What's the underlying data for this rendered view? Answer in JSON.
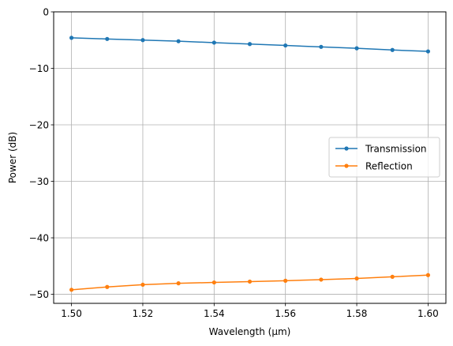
{
  "chart_data": {
    "type": "line",
    "xlabel": "Wavelength (µm)",
    "ylabel": "Power (dB)",
    "xlim": [
      1.495,
      1.605
    ],
    "ylim": [
      -51.6,
      0
    ],
    "xticks": [
      1.5,
      1.52,
      1.54,
      1.56,
      1.58,
      1.6
    ],
    "xtick_labels": [
      "1.50",
      "1.52",
      "1.54",
      "1.56",
      "1.58",
      "1.60"
    ],
    "yticks": [
      0,
      -10,
      -20,
      -30,
      -40,
      -50
    ],
    "ytick_labels": [
      "0",
      "−10",
      "−20",
      "−30",
      "−40",
      "−50"
    ],
    "grid": true,
    "legend_position": "center-right",
    "x": [
      1.5,
      1.51,
      1.52,
      1.53,
      1.54,
      1.55,
      1.56,
      1.57,
      1.58,
      1.59,
      1.6
    ],
    "series": [
      {
        "name": "Transmission",
        "color": "#1f77b4",
        "marker": "circle",
        "values": [
          -4.6,
          -4.8,
          -5.0,
          -5.2,
          -5.45,
          -5.7,
          -5.95,
          -6.2,
          -6.45,
          -6.75,
          -7.0
        ]
      },
      {
        "name": "Reflection",
        "color": "#ff7f0e",
        "marker": "circle",
        "values": [
          -49.2,
          -48.7,
          -48.3,
          -48.05,
          -47.9,
          -47.75,
          -47.6,
          -47.4,
          -47.2,
          -46.9,
          -46.6
        ]
      }
    ]
  }
}
